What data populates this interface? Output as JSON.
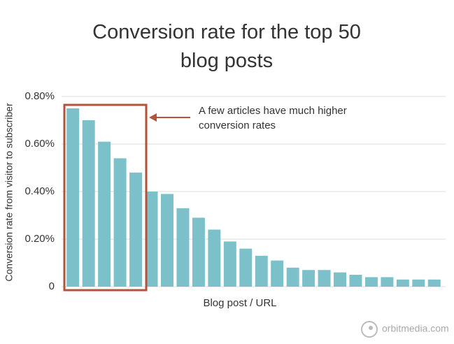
{
  "chart_data": {
    "type": "bar",
    "title": "Conversion rate for the top 50 blog posts",
    "x_label": "Blog post / URL",
    "y_label": "Conversion rate from visitor to subscriber",
    "annotation": "A few articles have much higher conversion rates",
    "source": "orbitmedia.com",
    "categories": [
      null,
      null,
      null,
      null,
      null,
      null,
      null,
      null,
      null,
      null,
      null,
      null,
      null,
      null,
      null,
      null,
      null,
      null,
      null,
      null,
      null,
      null,
      null,
      null
    ],
    "values": [
      0.75,
      0.7,
      0.61,
      0.54,
      0.48,
      0.4,
      0.39,
      0.33,
      0.29,
      0.24,
      0.19,
      0.16,
      0.13,
      0.11,
      0.08,
      0.07,
      0.07,
      0.06,
      0.05,
      0.04,
      0.04,
      0.03,
      0.03,
      0.03
    ],
    "color": "#7cc0ca",
    "ylim": [
      0,
      0.8
    ],
    "yticks": [
      0,
      {
        "value": 0.2,
        "label": "0.20%"
      },
      {
        "value": 0.4,
        "label": "0.40%"
      },
      {
        "value": 0.6,
        "label": "0.60%"
      },
      {
        "value": 0.8,
        "label": "0.80%"
      }
    ],
    "grid": true
  }
}
